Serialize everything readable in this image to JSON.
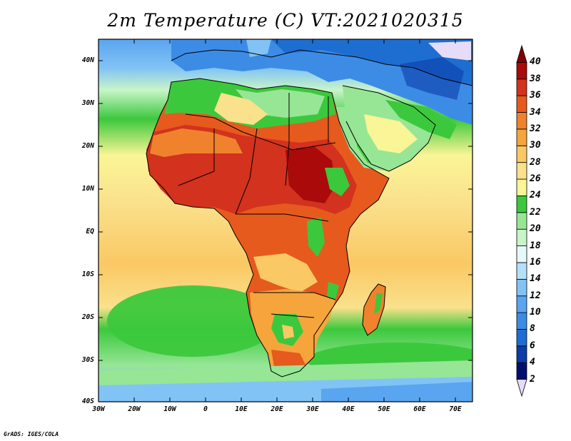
{
  "title": "2m Temperature (C) VT:2021020315",
  "credit": "GrADS: IGES/COLA",
  "map": {
    "type": "filled-contour-map",
    "variable": "2m Temperature (C)",
    "region": "Africa",
    "lat_labels": [
      "40N",
      "30N",
      "20N",
      "10N",
      "EQ",
      "10S",
      "20S",
      "30S",
      "40S"
    ],
    "lon_labels": [
      "30W",
      "20W",
      "10W",
      "0",
      "10E",
      "20E",
      "30E",
      "40E",
      "50E",
      "60E",
      "70E"
    ],
    "lat_range": [
      -40,
      45
    ],
    "lon_range": [
      -30,
      75
    ]
  },
  "colorbar": {
    "levels": [
      "2",
      "4",
      "6",
      "8",
      "10",
      "12",
      "14",
      "16",
      "18",
      "20",
      "22",
      "24",
      "26",
      "28",
      "30",
      "32",
      "34",
      "36",
      "38",
      "40"
    ],
    "colors": [
      "#e6dcfa",
      "#000e6e",
      "#0a3caa",
      "#1e6ed2",
      "#3c8ce6",
      "#5aa5f0",
      "#82c3f5",
      "#b4e1fa",
      "#e6fafa",
      "#c8f5c8",
      "#96e696",
      "#3cc83c",
      "#faf596",
      "#fae18c",
      "#fac864",
      "#f5a53c",
      "#f0822d",
      "#e65a1e",
      "#d2321e",
      "#aa0a0a",
      "#820000"
    ]
  }
}
